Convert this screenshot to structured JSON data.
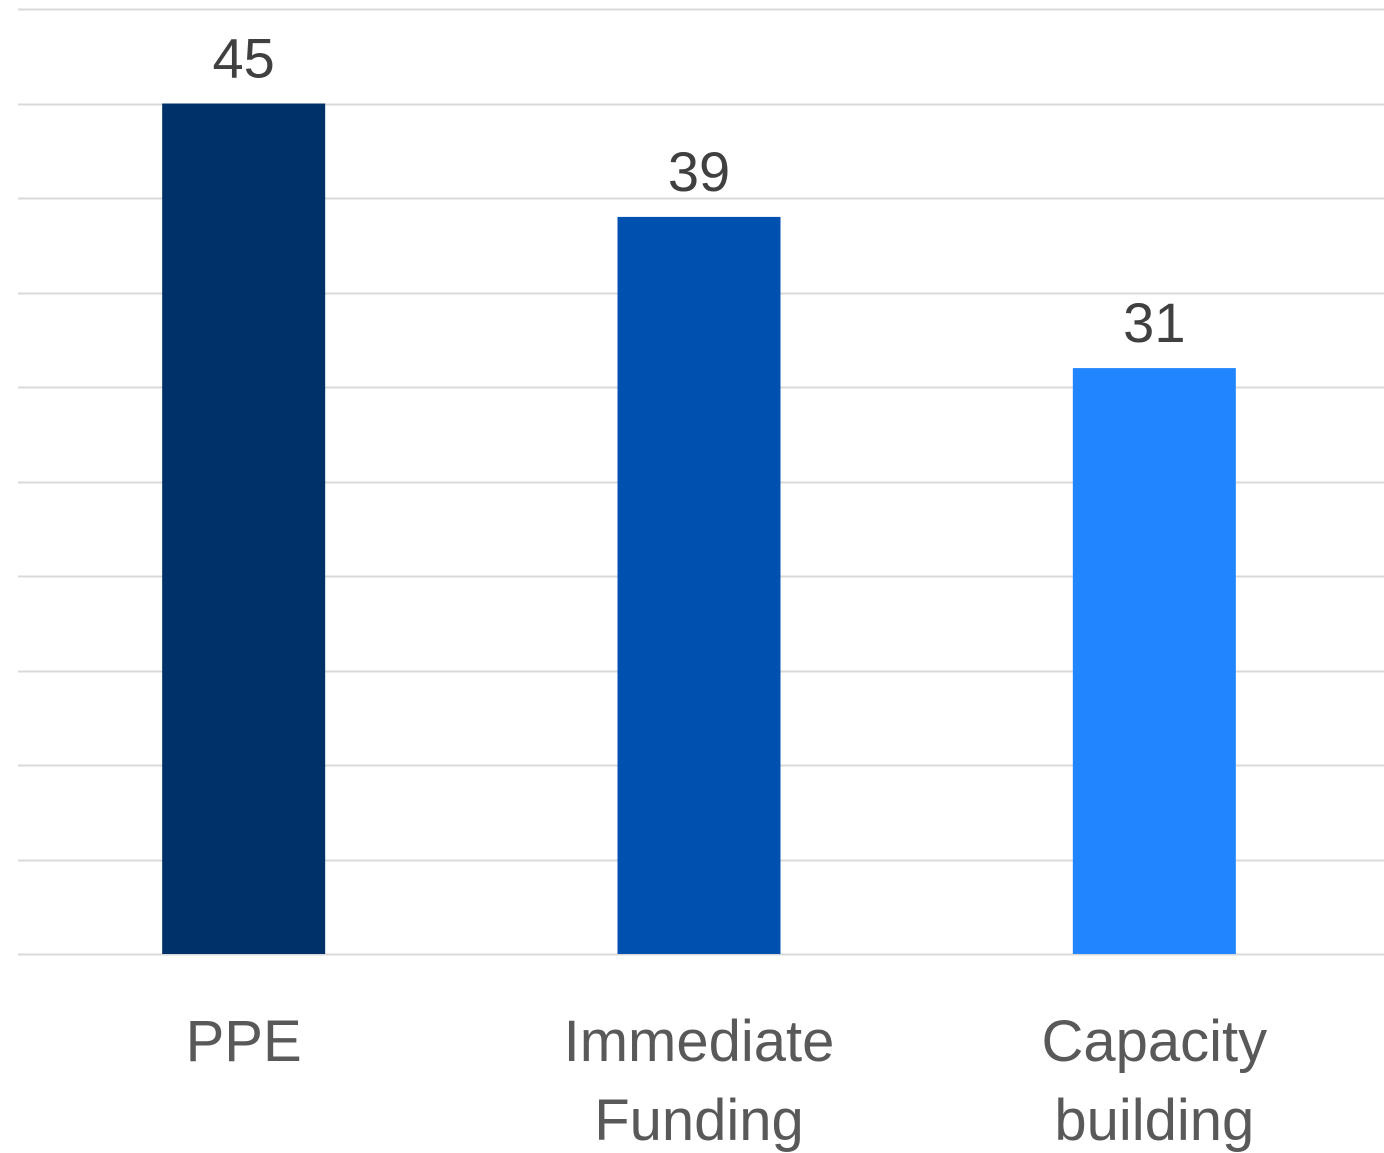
{
  "chart_data": {
    "type": "bar",
    "categories": [
      [
        "PPE"
      ],
      [
        "Immediate",
        "Funding"
      ],
      [
        "Capacity",
        "building"
      ]
    ],
    "values": [
      45,
      39,
      31
    ],
    "colors": [
      "#003168",
      "#0050B0",
      "#2185FF"
    ],
    "ylim": [
      0,
      50
    ],
    "gridlines": true,
    "y_axis_labels_shown": false,
    "data_labels": true,
    "title": "",
    "xlabel": "",
    "ylabel": ""
  },
  "colors": {
    "gridline": "#d9d9d9",
    "label_text": "#404040",
    "category_text": "#595959"
  }
}
